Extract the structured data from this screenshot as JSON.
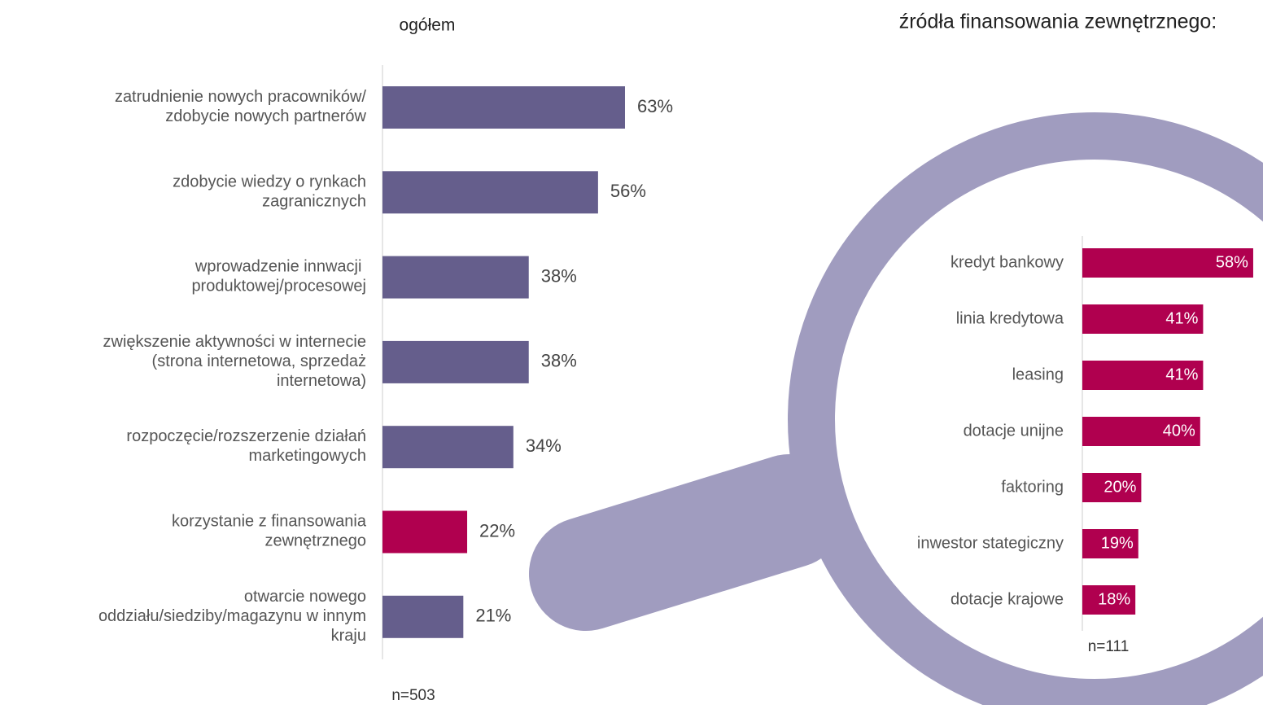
{
  "chart_data": [
    {
      "type": "bar",
      "orientation": "horizontal",
      "title": "ogółem",
      "categories": [
        "zatrudnienie nowych pracowników/\nzdobycie nowych partnerów",
        "zdobycie wiedzy o rynkach\nzagranicznych",
        "wprowadzenie innwacji \nproduktowej/procesowej",
        "zwiększenie aktywności w internecie\n(strona internetowa, sprzedaż\ninternetowa)",
        "rozpoczęcie/rozszerzenie działań\nmarketingowych",
        "korzystanie z finansowania\nzewnętrznego",
        "otwarcie nowego\noddziału/siedziby/magazynu w innym\nkraju"
      ],
      "values": [
        63,
        56,
        38,
        38,
        34,
        22,
        21
      ],
      "value_labels": [
        "63%",
        "56%",
        "38%",
        "38%",
        "34%",
        "22%",
        "21%"
      ],
      "colors": [
        "#655e8c",
        "#655e8c",
        "#655e8c",
        "#655e8c",
        "#655e8c",
        "#b0004f",
        "#655e8c"
      ],
      "annotation": "n=503"
    },
    {
      "type": "bar",
      "orientation": "horizontal",
      "title": "źródła finansowania zewnętrznego:",
      "categories": [
        "kredyt bankowy",
        "linia kredytowa",
        "leasing",
        "dotacje unijne",
        "faktoring",
        "inwestor stategiczny",
        "dotacje krajowe"
      ],
      "values": [
        58,
        41,
        41,
        40,
        20,
        19,
        18
      ],
      "value_labels": [
        "58%",
        "41%",
        "41%",
        "40%",
        "20%",
        "19%",
        "18%"
      ],
      "color": "#b0004f",
      "annotation": "n=111"
    }
  ]
}
